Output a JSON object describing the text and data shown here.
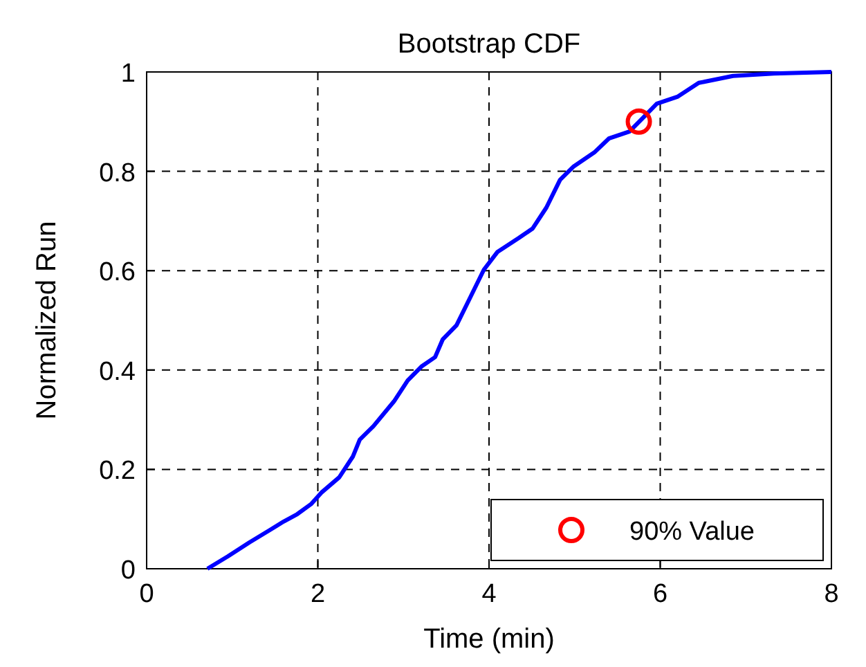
{
  "chart_data": {
    "type": "line",
    "title": "Bootstrap CDF",
    "xlabel": "Time (min)",
    "ylabel": "Normalized Run",
    "xlim": [
      0,
      8
    ],
    "ylim": [
      0,
      1
    ],
    "xticks": [
      0,
      2,
      4,
      6,
      8
    ],
    "yticks": [
      0,
      0.2,
      0.4,
      0.6,
      0.8,
      1
    ],
    "grid": true,
    "legend": "bottom right",
    "series": [
      {
        "color": "#0000ff",
        "line_style": "solid",
        "marker": "none",
        "x": [
          0.71,
          0.95,
          1.2,
          1.44,
          1.6,
          1.76,
          1.92,
          2.04,
          2.25,
          2.41,
          2.49,
          2.65,
          2.89,
          3.05,
          3.21,
          3.37,
          3.46,
          3.62,
          3.78,
          3.94,
          4.1,
          4.35,
          4.51,
          4.67,
          4.83,
          4.99,
          5.23,
          5.4,
          5.64,
          5.8,
          5.96,
          6.2,
          6.45,
          6.85,
          7.33,
          8
        ],
        "values": [
          0,
          0.025,
          0.053,
          0.078,
          0.095,
          0.11,
          0.13,
          0.153,
          0.184,
          0.226,
          0.26,
          0.287,
          0.337,
          0.379,
          0.407,
          0.426,
          0.462,
          0.49,
          0.546,
          0.602,
          0.638,
          0.666,
          0.685,
          0.727,
          0.783,
          0.81,
          0.838,
          0.866,
          0.88,
          0.908,
          0.936,
          0.95,
          0.978,
          0.992,
          0.997,
          1
        ]
      },
      {
        "type": "scatter",
        "name": "90% Value",
        "color": "#ff0000",
        "marker": "circle",
        "x": [
          5.75
        ],
        "values": [
          0.9
        ]
      }
    ]
  }
}
